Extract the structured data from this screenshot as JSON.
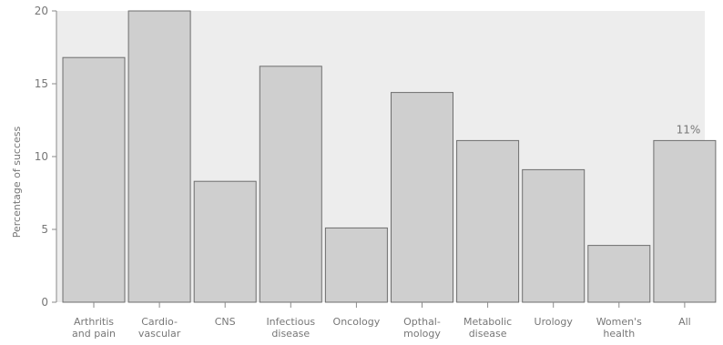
{
  "chart_data": {
    "type": "bar",
    "ylabel": "Percentage of success",
    "xlabel": "",
    "ylim": [
      0,
      20
    ],
    "yticks": [
      0,
      5,
      10,
      15,
      20
    ],
    "grid": false,
    "categories": [
      [
        "Arthritis",
        "and pain"
      ],
      [
        "Cardio-",
        "vascular"
      ],
      [
        "CNS"
      ],
      [
        "Infectious",
        "disease"
      ],
      [
        "Oncology"
      ],
      [
        "Opthal-",
        "mology"
      ],
      [
        "Metabolic",
        "disease"
      ],
      [
        "Urology"
      ],
      [
        "Women's",
        "health"
      ],
      [
        "All"
      ]
    ],
    "values": [
      16.8,
      20,
      8.3,
      16.2,
      5.1,
      14.4,
      11.1,
      9.1,
      3.9,
      11.1
    ],
    "annotations": [
      {
        "category_index": 9,
        "text": "11%"
      }
    ]
  }
}
